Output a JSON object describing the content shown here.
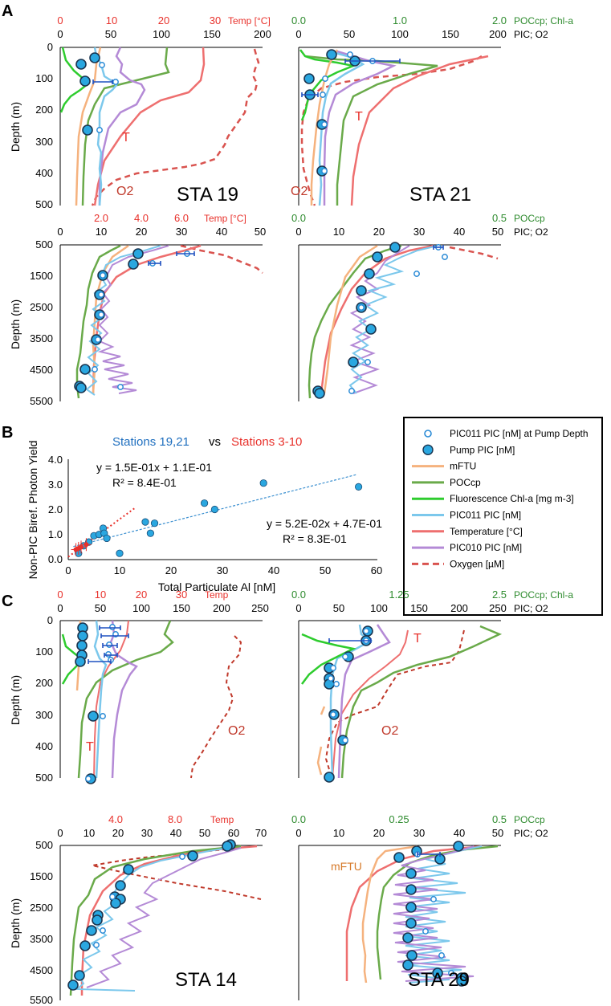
{
  "figure": {
    "panel_labels": [
      "A",
      "B",
      "C"
    ],
    "series_names": {
      "ftu": "mFTU",
      "poc": "POCcp",
      "chla": "Fluorescence Chl-a",
      "pic011": "PIC011 PIC",
      "temp": "Temperature",
      "pic010": "PIC010 PIC",
      "oxy": "Oxygen"
    }
  },
  "colors": {
    "ftu": "#f5b27e",
    "poc": "#6aaa4a",
    "chla": "#2ecc2e",
    "pic011": "#7cc8ec",
    "temp": "#ee6f6f",
    "pic010": "#b48ad6",
    "oxy": "#d9534f",
    "oxy_dark": "#c0392b",
    "pump": "#2b8bd6",
    "red_axis": "#e8312b",
    "green_axis": "#2e8b2e",
    "chl_text": "#3ad03a",
    "blue_text": "#1f6fbf",
    "fit_blue": "#3a8fd0"
  },
  "legend": {
    "items": [
      {
        "label": "PIC011 PIC [nM] at Pump Depth",
        "kind": "open-circle"
      },
      {
        "label": "Pump PIC [nM]",
        "kind": "filled-circle"
      },
      {
        "label": "mFTU",
        "kind": "line-ftu"
      },
      {
        "label": "POCcp",
        "kind": "line-poc"
      },
      {
        "label": "Fluorescence Chl-a [mg m-3]",
        "kind": "line-chla"
      },
      {
        "label": "PIC011 PIC [nM]",
        "kind": "line-pic011"
      },
      {
        "label": "Temperature [°C]",
        "kind": "line-temp"
      },
      {
        "label": "PIC010 PIC [nM]",
        "kind": "line-pic010"
      },
      {
        "label": "Oxygen [µM]",
        "kind": "line-oxy"
      }
    ]
  },
  "depth_label": "Depth (m)",
  "panelA": {
    "top_left": {
      "station": "STA 19",
      "red_axis": {
        "label": "Temp [°C]",
        "ticks": [
          "0",
          "10",
          "20",
          "30"
        ]
      },
      "black_axis": {
        "ticks": [
          "0",
          "50",
          "100",
          "150",
          "200"
        ]
      },
      "depth_ticks": [
        "0",
        "100",
        "200",
        "300",
        "400",
        "500"
      ],
      "annotations": [
        "T",
        "O2"
      ]
    },
    "top_right": {
      "station": "STA 21",
      "green_axis": {
        "ticks": [
          "0.0",
          "1.0",
          "2.0"
        ]
      },
      "black_axis": {
        "ticks": [
          "0",
          "50",
          "100",
          "150",
          "200"
        ]
      },
      "axis_title_green": "POCcp; Chl-a",
      "axis_title_black": "PIC; O2",
      "annotations": [
        "T",
        "O2"
      ]
    },
    "bottom_left": {
      "red_axis": {
        "label": "Temp [°C]",
        "ticks": [
          "2.0",
          "4.0",
          "6.0"
        ]
      },
      "black_axis": {
        "ticks": [
          "0",
          "10",
          "20",
          "30",
          "40",
          "50"
        ]
      },
      "depth_ticks": [
        "500",
        "1500",
        "2500",
        "3500",
        "4500",
        "5500"
      ]
    },
    "bottom_right": {
      "green_axis": {
        "ticks": [
          "0.0",
          "0.5"
        ]
      },
      "black_axis": {
        "ticks": [
          "0",
          "10",
          "20",
          "30",
          "40",
          "50"
        ]
      },
      "axis_title_green": "POCcp",
      "axis_title_black": "PIC; O2"
    }
  },
  "panelB": {
    "title_left": "Stations 19,21",
    "title_vs": "vs",
    "title_right": "Stations 3-10",
    "xlabel": "Total Particulate Al [nM]",
    "ylabel": "Non-PIC Biref. Photon Yield",
    "xticks": [
      "0",
      "10",
      "20",
      "30",
      "40",
      "50",
      "60"
    ],
    "yticks": [
      "0.0",
      "1.0",
      "2.0",
      "3.0",
      "4.0"
    ],
    "eq1": "y = 1.5E-01x + 1.1E-01",
    "r2_1": "R² = 8.4E-01",
    "eq2": "y = 5.2E-02x + 4.7E-01",
    "r2_2": "R² = 8.3E-01"
  },
  "panelC": {
    "top_left": {
      "red_axis": {
        "label": "Temp",
        "ticks": [
          "0",
          "10",
          "20",
          "30"
        ]
      },
      "black_axis": {
        "ticks": [
          "0",
          "50",
          "100",
          "150",
          "200",
          "250"
        ]
      },
      "depth_ticks": [
        "0",
        "100",
        "200",
        "300",
        "400",
        "500"
      ],
      "annotations": [
        "T",
        "O2"
      ]
    },
    "top_right": {
      "green_axis": {
        "ticks": [
          "0.0",
          "1.25",
          "2.5"
        ]
      },
      "black_axis": {
        "ticks": [
          "0",
          "50",
          "100",
          "150",
          "200",
          "250"
        ]
      },
      "axis_title_green": "POCcp; Chl-a",
      "axis_title_black": "PIC; O2",
      "annotations": [
        "T",
        "O2"
      ]
    },
    "bottom_left": {
      "station": "STA 14",
      "red_axis": {
        "label": "Temp",
        "ticks": [
          "4.0",
          "8.0"
        ]
      },
      "black_axis": {
        "ticks": [
          "0",
          "10",
          "20",
          "30",
          "40",
          "50",
          "60",
          "70"
        ]
      },
      "depth_ticks": [
        "500",
        "1500",
        "2500",
        "3500",
        "4500",
        "5500"
      ]
    },
    "bottom_right": {
      "station": "STA 29",
      "green_axis": {
        "ticks": [
          "0.0",
          "0.25",
          "0.5"
        ]
      },
      "black_axis": {
        "ticks": [
          "0",
          "10",
          "20",
          "30",
          "40",
          "50"
        ]
      },
      "axis_title_green": "POCcp",
      "axis_title_black": "PIC; O2",
      "annotations": [
        "mFTU"
      ]
    }
  },
  "chart_data": [
    {
      "type": "scatter",
      "title": "Stations 19,21 vs Stations 3-10",
      "xlabel": "Total Particulate Al [nM]",
      "ylabel": "Non-PIC Biref. Photon Yield",
      "xlim": [
        0,
        60
      ],
      "ylim": [
        0,
        4
      ],
      "series": [
        {
          "name": "Stations 19,21",
          "x": [
            2.0,
            3.0,
            4.0,
            5.0,
            6.0,
            6.8,
            7.0,
            7.5,
            10.0,
            15.0,
            16.0,
            16.8,
            26.5,
            28.5,
            38.0,
            56.5
          ],
          "y": [
            0.25,
            0.55,
            0.7,
            0.95,
            1.0,
            1.25,
            1.05,
            0.85,
            0.25,
            1.5,
            1.05,
            1.45,
            2.25,
            2.0,
            3.05,
            2.9
          ]
        },
        {
          "name": "Stations 3-10",
          "x": [
            1.5,
            2.0,
            2.5,
            3.5
          ],
          "y": [
            0.4,
            0.45,
            0.5,
            0.6
          ]
        }
      ],
      "fits": [
        {
          "name": "Stations 3-10",
          "slope": 0.15,
          "intercept": 0.11,
          "r2": 0.84,
          "x_range": [
            0,
            13
          ]
        },
        {
          "name": "Stations 19,21",
          "slope": 0.052,
          "intercept": 0.47,
          "r2": 0.83,
          "x_range": [
            1,
            56
          ]
        }
      ]
    }
  ]
}
